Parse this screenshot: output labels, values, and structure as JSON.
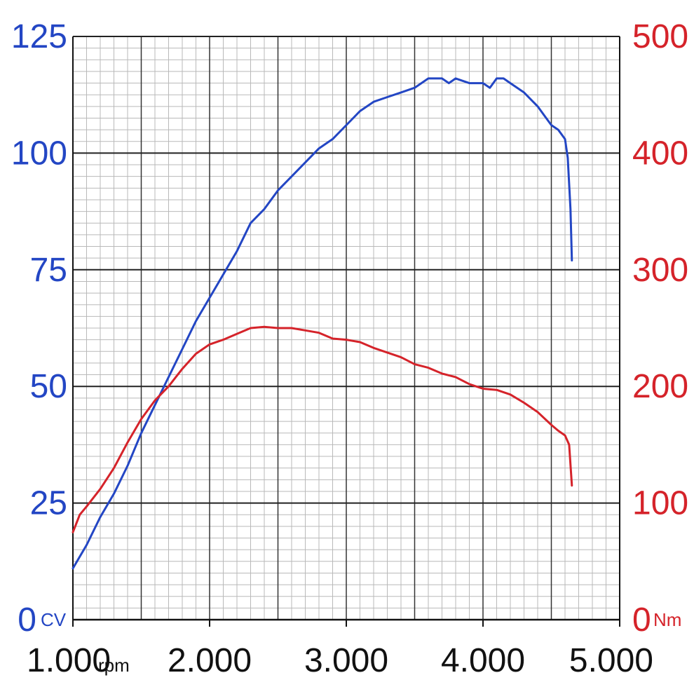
{
  "chart_data": {
    "type": "line",
    "xlim": [
      1000,
      5000
    ],
    "x_ticks": [
      "1.000",
      "2.000",
      "3.000",
      "4.000",
      "5.000"
    ],
    "x_unit": "rpm",
    "y_left": {
      "lim": [
        0,
        125
      ],
      "ticks": [
        "0",
        "25",
        "50",
        "75",
        "100",
        "125"
      ],
      "unit": "CV",
      "color": "#2346c4"
    },
    "y_right": {
      "lim": [
        0,
        500
      ],
      "ticks": [
        "0",
        "100",
        "200",
        "300",
        "400",
        "500"
      ],
      "unit": "Nm",
      "color": "#d5232a"
    },
    "grid": true,
    "series": [
      {
        "axis": "left",
        "color": "#2346c4",
        "x": [
          1000,
          1100,
          1200,
          1300,
          1400,
          1500,
          1600,
          1700,
          1800,
          1900,
          2000,
          2100,
          2200,
          2300,
          2400,
          2500,
          2600,
          2700,
          2800,
          2900,
          3000,
          3100,
          3200,
          3300,
          3400,
          3500,
          3600,
          3700,
          3750,
          3800,
          3900,
          4000,
          4050,
          4100,
          4150,
          4200,
          4300,
          4400,
          4450,
          4500,
          4550,
          4600,
          4620,
          4640,
          4650
        ],
        "values": [
          11,
          16,
          22,
          27,
          33,
          40,
          46,
          52,
          58,
          64,
          69,
          74,
          79,
          85,
          88,
          92,
          95,
          98,
          101,
          103,
          106,
          109,
          111,
          112,
          113,
          114,
          116,
          116,
          115,
          116,
          115,
          115,
          114,
          116,
          116,
          115,
          113,
          110,
          108,
          106,
          105,
          103,
          99,
          88,
          77
        ]
      },
      {
        "axis": "right",
        "color": "#d5232a",
        "x": [
          1000,
          1050,
          1100,
          1200,
          1300,
          1400,
          1500,
          1600,
          1700,
          1800,
          1900,
          2000,
          2100,
          2200,
          2300,
          2400,
          2500,
          2600,
          2700,
          2800,
          2900,
          3000,
          3100,
          3200,
          3300,
          3400,
          3500,
          3600,
          3700,
          3800,
          3900,
          4000,
          4100,
          4200,
          4300,
          4400,
          4500,
          4550,
          4600,
          4630,
          4650
        ],
        "values": [
          75,
          90,
          97,
          112,
          130,
          152,
          172,
          188,
          200,
          215,
          228,
          236,
          240,
          245,
          250,
          251,
          250,
          250,
          248,
          246,
          241,
          240,
          238,
          233,
          229,
          225,
          219,
          216,
          211,
          208,
          202,
          198,
          197,
          193,
          186,
          178,
          167,
          162,
          158,
          150,
          115
        ]
      }
    ]
  }
}
